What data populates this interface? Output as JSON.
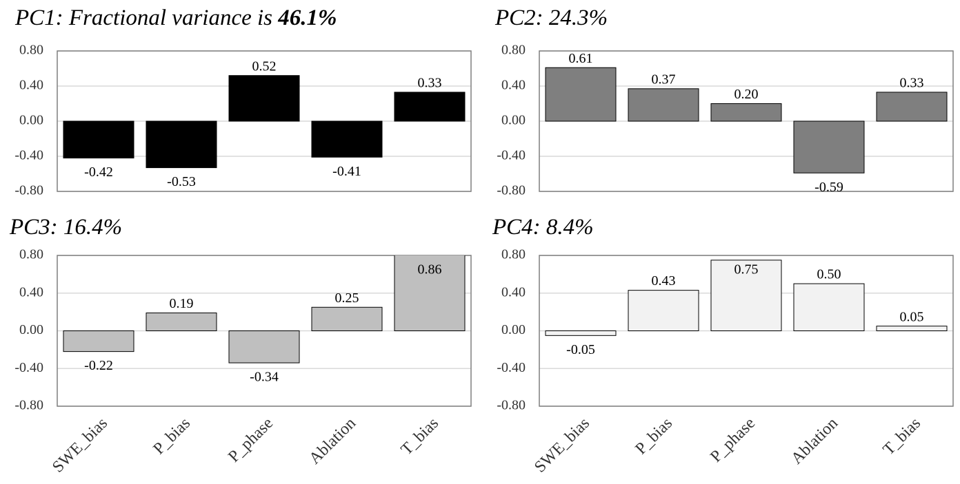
{
  "chart_data": [
    {
      "type": "bar",
      "title": "PC1: Fractional variance is",
      "title_emphasis": "46.1%",
      "values": [
        -0.42,
        -0.53,
        0.52,
        -0.41,
        0.33
      ],
      "value_labels": [
        "-0.42",
        "-0.53",
        "0.52",
        "-0.41",
        "0.33"
      ],
      "color": "#000000",
      "ylim": [
        -0.8,
        0.8
      ],
      "yticks": [
        {
          "value": -0.8,
          "label": "-0.80"
        },
        {
          "value": -0.4,
          "label": "-0.40"
        },
        {
          "value": 0,
          "label": "0.00"
        },
        {
          "value": 0.4,
          "label": "0.40"
        },
        {
          "value": 0.8,
          "label": "0.80"
        }
      ],
      "grid": true
    },
    {
      "type": "bar",
      "title": "PC2: 24.3%",
      "values": [
        0.61,
        0.37,
        0.2,
        -0.59,
        0.33
      ],
      "value_labels": [
        "0.61",
        "0.37",
        "0.20",
        "-0.59",
        "0.33"
      ],
      "color": "#7f7f7f",
      "ylim": [
        -0.8,
        0.8
      ],
      "yticks": [
        {
          "value": -0.8,
          "label": "-0.80"
        },
        {
          "value": -0.4,
          "label": "-0.40"
        },
        {
          "value": 0,
          "label": "0.00"
        },
        {
          "value": 0.4,
          "label": "0.40"
        },
        {
          "value": 0.8,
          "label": "0.80"
        }
      ],
      "grid": true
    },
    {
      "type": "bar",
      "title": "PC3: 16.4%",
      "categories": [
        "SWE_bias",
        "P_bias",
        "P_phase",
        "Ablation",
        "T_bias"
      ],
      "values": [
        -0.22,
        0.19,
        -0.34,
        0.25,
        0.86
      ],
      "value_labels": [
        "-0.22",
        "0.19",
        "-0.34",
        "0.25",
        "0.86"
      ],
      "color": "#bfbfbf",
      "ylim": [
        -0.8,
        0.8
      ],
      "yticks": [
        {
          "value": -0.8,
          "label": "-0.80"
        },
        {
          "value": -0.4,
          "label": "-0.40"
        },
        {
          "value": 0,
          "label": "0.00"
        },
        {
          "value": 0.4,
          "label": "0.40"
        },
        {
          "value": 0.8,
          "label": "0.80"
        }
      ],
      "grid": true
    },
    {
      "type": "bar",
      "title": "PC4: 8.4%",
      "categories": [
        "SWE_bias",
        "P_bias",
        "P_phase",
        "Ablation",
        "T_bias"
      ],
      "values": [
        -0.05,
        0.43,
        0.75,
        0.5,
        0.05
      ],
      "value_labels": [
        "-0.05",
        "0.43",
        "0.75",
        "0.50",
        "0.05"
      ],
      "color": "#f2f2f2",
      "ylim": [
        -0.8,
        0.8
      ],
      "yticks": [
        {
          "value": -0.8,
          "label": "-0.80"
        },
        {
          "value": -0.4,
          "label": "-0.40"
        },
        {
          "value": 0,
          "label": "0.00"
        },
        {
          "value": 0.4,
          "label": "0.40"
        },
        {
          "value": 0.8,
          "label": "0.80"
        }
      ],
      "grid": true
    }
  ]
}
